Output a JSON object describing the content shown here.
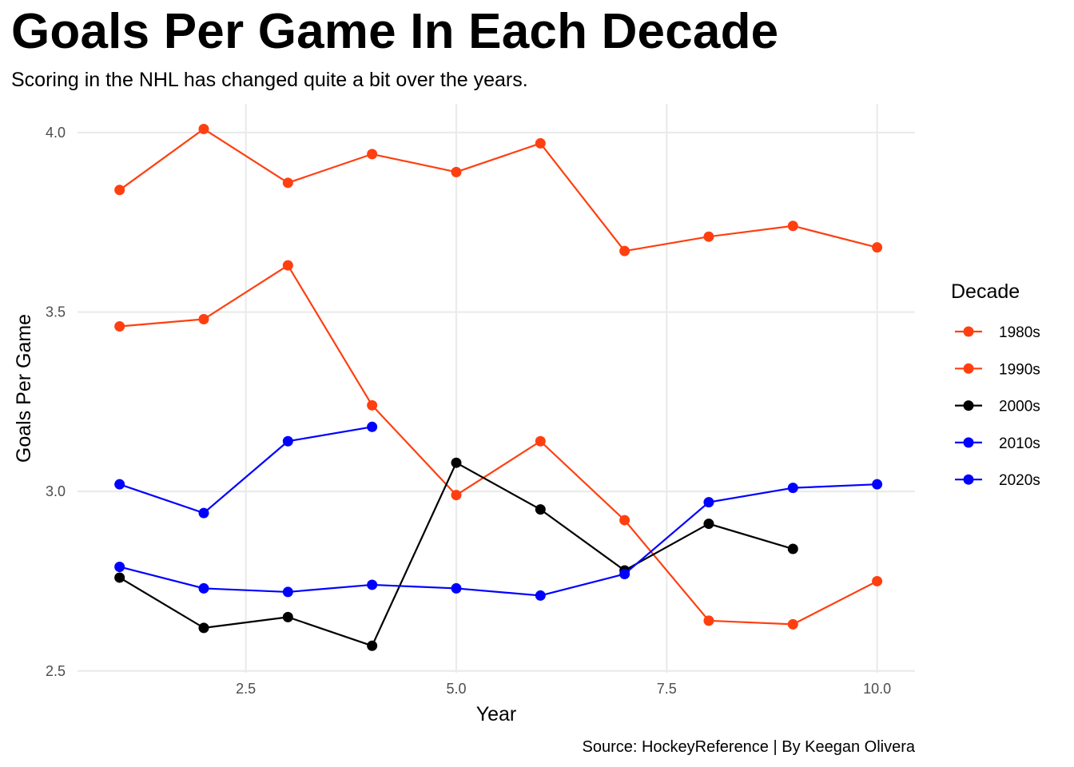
{
  "chart_data": {
    "type": "line",
    "title": "Goals Per Game In Each Decade",
    "subtitle": "Scoring in the NHL has changed quite a bit over the years.",
    "xlabel": "Year",
    "ylabel": "Goals Per Game",
    "caption": "Source: HockeyReference | By Keegan Olivera",
    "legend_title": "Decade",
    "legend_position": "right",
    "grid": true,
    "xlim": [
      0.5,
      10.45
    ],
    "ylim": [
      2.495,
      4.08
    ],
    "x_ticks": [
      2.5,
      5.0,
      7.5,
      10.0
    ],
    "x_tick_labels": [
      "2.5",
      "5.0",
      "7.5",
      "10.0"
    ],
    "y_ticks": [
      2.5,
      3.0,
      3.5,
      4.0
    ],
    "y_tick_labels": [
      "2.5",
      "3.0",
      "3.5",
      "4.0"
    ],
    "series": [
      {
        "name": "1980s",
        "color": "#ff3f10",
        "x": [
          1,
          2,
          3,
          4,
          5,
          6,
          7,
          8,
          9,
          10
        ],
        "y": [
          3.84,
          4.01,
          3.86,
          3.94,
          3.89,
          3.97,
          3.67,
          3.71,
          3.74,
          3.68
        ]
      },
      {
        "name": "1990s",
        "color": "#ff3f10",
        "x": [
          1,
          2,
          3,
          4,
          5,
          6,
          7,
          8,
          9,
          10
        ],
        "y": [
          3.46,
          3.48,
          3.63,
          3.24,
          2.99,
          3.14,
          2.92,
          2.64,
          2.63,
          2.75
        ]
      },
      {
        "name": "2000s",
        "color": "#000000",
        "x": [
          1,
          2,
          3,
          4,
          5,
          6,
          7,
          8,
          9
        ],
        "y": [
          2.76,
          2.62,
          2.65,
          2.57,
          3.08,
          2.95,
          2.78,
          2.91,
          2.84
        ]
      },
      {
        "name": "2010s",
        "color": "#0000ff",
        "x": [
          1,
          2,
          3,
          4,
          5,
          6,
          7,
          8,
          9,
          10
        ],
        "y": [
          2.79,
          2.73,
          2.72,
          2.74,
          2.73,
          2.71,
          2.77,
          2.97,
          3.01,
          3.02
        ]
      },
      {
        "name": "2020s",
        "color": "#0000ff",
        "x": [
          1,
          2,
          3,
          4
        ],
        "y": [
          3.02,
          2.94,
          3.14,
          3.18
        ]
      }
    ]
  }
}
